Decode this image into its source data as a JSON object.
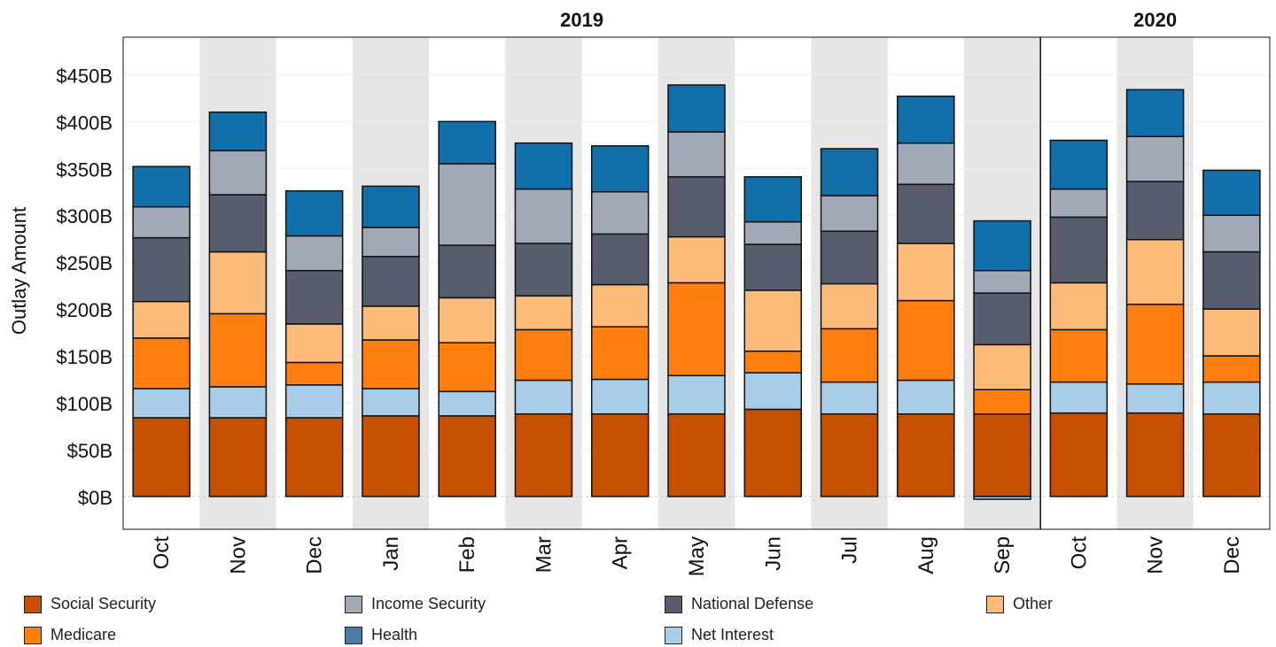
{
  "chart_data": {
    "type": "bar",
    "stacked": true,
    "ylabel": "Outlay Amount",
    "ylim": [
      -35,
      490
    ],
    "yticks": [
      0,
      50,
      100,
      150,
      200,
      250,
      300,
      350,
      400,
      450
    ],
    "ytick_labels": [
      "$0B",
      "$50B",
      "$100B",
      "$150B",
      "$200B",
      "$250B",
      "$300B",
      "$350B",
      "$400B",
      "$450B"
    ],
    "categories": [
      "Oct",
      "Nov",
      "Dec",
      "Jan",
      "Feb",
      "Mar",
      "Apr",
      "May",
      "Jun",
      "Jul",
      "Aug",
      "Sep",
      "Oct",
      "Nov",
      "Dec"
    ],
    "year_labels": [
      {
        "label": "2019",
        "start_index": 0,
        "end_index": 11
      },
      {
        "label": "2020",
        "start_index": 12,
        "end_index": 14
      }
    ],
    "shaded_columns": "alternate (Nov, Jan, Mar, May, Jul, Sep, Nov)",
    "grid": true,
    "legend_position": "bottom",
    "series": [
      {
        "name": "Social Security",
        "color": "#c75000",
        "values": [
          84,
          84,
          84,
          86,
          86,
          88,
          88,
          88,
          93,
          88,
          88,
          88,
          89,
          89,
          88
        ]
      },
      {
        "name": "Net Interest",
        "color": "#a8cde8",
        "values": [
          31,
          33,
          35,
          29,
          26,
          36,
          37,
          41,
          39,
          34,
          36,
          -3,
          33,
          31,
          34
        ]
      },
      {
        "name": "Medicare",
        "color": "#fe7f0e",
        "values": [
          54,
          78,
          24,
          52,
          52,
          54,
          56,
          99,
          23,
          57,
          85,
          26,
          56,
          85,
          28
        ]
      },
      {
        "name": "Other",
        "color": "#fdbb7a",
        "values": [
          39,
          66,
          41,
          36,
          48,
          36,
          45,
          49,
          65,
          48,
          61,
          48,
          50,
          69,
          50
        ]
      },
      {
        "name": "National Defense",
        "color": "#575d6c",
        "values": [
          68,
          61,
          57,
          53,
          56,
          56,
          54,
          64,
          49,
          56,
          63,
          55,
          70,
          62,
          61
        ]
      },
      {
        "name": "Income Security",
        "color": "#a0a9b5",
        "values": [
          33,
          47,
          37,
          31,
          87,
          58,
          45,
          48,
          24,
          38,
          44,
          24,
          30,
          48,
          39
        ]
      },
      {
        "name": "Health",
        "color": "#1170aa",
        "values": [
          43,
          41,
          48,
          44,
          45,
          49,
          49,
          50,
          48,
          50,
          50,
          53,
          52,
          50,
          48
        ]
      }
    ],
    "legend_order": [
      "Social Security",
      "Income Security",
      "National Defense",
      "Other",
      "Medicare",
      "Health",
      "Net Interest"
    ],
    "legend_colors": {
      "Social Security": "#c75000",
      "Income Security": "#a0a9b5",
      "National Defense": "#575d6c",
      "Other": "#fdbb7a",
      "Medicare": "#fe7f0e",
      "Health": "#4e79a7",
      "Net Interest": "#a8cde8"
    }
  }
}
